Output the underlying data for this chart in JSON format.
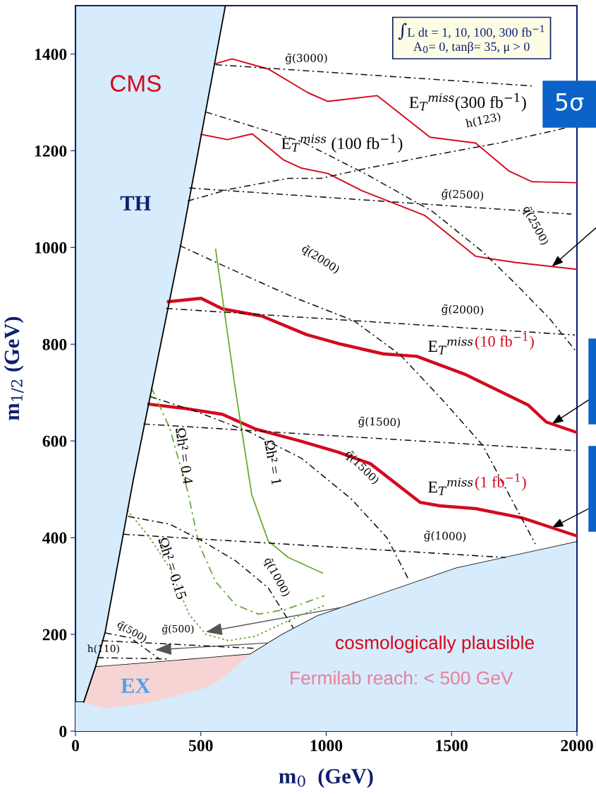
{
  "chart_data": {
    "type": "line",
    "xlabel": "m$_{0}$  (GeV)",
    "ylabel": "m$_{1/2}$ (GeV)",
    "xlim": [
      0,
      2000
    ],
    "ylim": [
      0,
      1500
    ],
    "xticks": [
      0,
      500,
      1000,
      1500,
      2000
    ],
    "yticks": [
      0,
      200,
      400,
      600,
      800,
      1000,
      1200,
      1400
    ],
    "grid": false,
    "marker": "none",
    "series": [
      {
        "color": "#d40a1e",
        "line_style": "solid",
        "x": [
          559,
          625,
          769,
          927,
          1007,
          1203,
          1414,
          1596,
          1729,
          1820,
          1997
        ],
        "values": [
          1380,
          1390,
          1369,
          1320,
          1302,
          1314,
          1228,
          1216,
          1158,
          1136,
          1134
        ]
      },
      {
        "color": "#d40a1e",
        "line_style": "solid",
        "x": [
          501,
          606,
          705,
          830,
          902,
          1007,
          1140,
          1394,
          1596,
          1649,
          1754,
          1997
        ],
        "values": [
          1234,
          1223,
          1235,
          1181,
          1164,
          1153,
          1118,
          1066,
          982,
          977,
          969,
          955
        ]
      },
      {
        "color": "#d40a1e",
        "line_style": "solid",
        "x": [
          371,
          501,
          586,
          744,
          921,
          1059,
          1228,
          1361,
          1557,
          1806,
          1878,
          1997
        ],
        "values": [
          888,
          895,
          873,
          858,
          820,
          800,
          780,
          775,
          737,
          674,
          639,
          618
        ]
      },
      {
        "color": "#d40a1e",
        "line_style": "solid",
        "x": [
          293,
          440,
          586,
          716,
          902,
          1046,
          1176,
          1375,
          1452,
          1596,
          1781,
          1997
        ],
        "values": [
          676,
          667,
          655,
          625,
          599,
          577,
          553,
          473,
          466,
          460,
          441,
          404
        ]
      },
      {
        "color": "#6aaa34",
        "line_style": "solid",
        "x": [
          559,
          639,
          703,
          769,
          849,
          985
        ],
        "values": [
          996,
          702,
          489,
          393,
          359,
          327
        ]
      },
      {
        "color": "#6aaa34",
        "line_style": "dashed",
        "x": [
          302,
          376,
          448,
          492,
          559,
          639,
          730,
          835,
          993
        ],
        "values": [
          711,
          626,
          495,
          387,
          309,
          261,
          242,
          251,
          280
        ]
      },
      {
        "color": "#6aaa34",
        "line_style": "dotted",
        "x": [
          207,
          296,
          376,
          454,
          520,
          611,
          716,
          902,
          993
        ],
        "values": [
          457,
          400,
          337,
          241,
          200,
          187,
          196,
          241,
          260
        ]
      },
      {
        "color": "#111111",
        "line_style": "dashed",
        "x": [
          559,
          1820
        ],
        "values": [
          1378,
          1334
        ]
      },
      {
        "color": "#111111",
        "line_style": "dashed",
        "x": [
          454,
          1978
        ],
        "values": [
          1123,
          1069
        ]
      },
      {
        "color": "#111111",
        "line_style": "dashed",
        "x": [
          362,
          1992
        ],
        "values": [
          874,
          819
        ]
      },
      {
        "color": "#111111",
        "line_style": "dashed",
        "x": [
          271,
          1992
        ],
        "values": [
          635,
          580
        ]
      },
      {
        "color": "#111111",
        "line_style": "dashed",
        "x": [
          191,
          1715
        ],
        "values": [
          407,
          359
        ]
      },
      {
        "color": "#111111",
        "line_style": "dashed",
        "x": [
          105,
          722
        ],
        "values": [
          187,
          171
        ]
      },
      {
        "color": "#111111",
        "line_style": "dashed",
        "x": [
          86,
          376
        ],
        "values": [
          152,
          149
        ]
      },
      {
        "color": "#111111",
        "line_style": "dashed",
        "x": [
          119,
          219,
          335
        ],
        "values": [
          203,
          193,
          149
        ]
      },
      {
        "color": "#111111",
        "line_style": "dashed",
        "x": [
          448,
          611,
          849,
          979,
          1165,
          1427,
          1690,
          1953
        ],
        "values": [
          1096,
          1120,
          1143,
          1143,
          1164,
          1191,
          1216,
          1247
        ]
      },
      {
        "color": "#111111",
        "line_style": "dashed",
        "x": [
          520,
          902,
          1165,
          1425,
          1624,
          1751,
          1889,
          1997
        ],
        "values": [
          1280,
          1219,
          1150,
          1074,
          991,
          927,
          854,
          785
        ]
      },
      {
        "color": "#111111",
        "line_style": "dashed",
        "x": [
          415,
          617,
          866,
          1112,
          1295,
          1474,
          1624,
          1729,
          1834
        ],
        "values": [
          1004,
          956,
          898,
          848,
          778,
          679,
          591,
          489,
          387
        ]
      },
      {
        "color": "#111111",
        "line_style": "dashed",
        "x": [
          296,
          481,
          692,
          902,
          1100,
          1242,
          1328
        ],
        "values": [
          692,
          661,
          619,
          564,
          480,
          400,
          314
        ]
      },
      {
        "color": "#111111",
        "line_style": "dashed",
        "x": [
          210,
          376,
          506,
          639,
          769,
          869
        ],
        "values": [
          444,
          428,
          393,
          352,
          296,
          213
        ]
      },
      {
        "color": "#000000",
        "line_style": "solid",
        "x": [
          33,
          80,
          119,
          230,
          418,
          598
        ],
        "values": [
          60,
          133,
          206,
          518,
          1000,
          1500
        ]
      },
      {
        "type": "area",
        "color": "#f7d4d4",
        "x": [
          33,
          80,
          113,
          282,
          520,
          584,
          697
        ],
        "values": [
          60,
          133,
          134,
          141,
          151,
          154,
          159
        ]
      },
      {
        "type": "area",
        "color": "#d6ebfb",
        "x": [
          0,
          33,
          113,
          282,
          520,
          584,
          697,
          822,
          965,
          1519,
          1997
        ],
        "values": [
          60,
          60,
          47,
          57,
          89,
          108,
          159,
          199,
          238,
          337,
          391
        ]
      }
    ],
    "annotations": [
      "g̃(3000)",
      "E$_{T}$$^{miss}$(300 fb$^{−1}$)",
      "E$_{T}$$^{miss}$ (100 fb$^{−1}$)",
      "h(123)",
      "g̃(2500)",
      "q̃(2000)",
      "q̃(2500)",
      "g̃(2000)",
      "E$_{T}$$^{miss}$",
      "(10 fb$^{−1}$)",
      "g̃(1500)",
      "q̃(1500)",
      "E$_{T}$$^{miss}$",
      "(1 fb$^{−1}$)",
      "g̃(1000)",
      "q̃(1000)",
      "Ωh² = 0.4",
      "Ωh² = 1",
      "Ωh² = 0.15",
      "q̃(500)",
      "g̃(500)",
      "h(110)",
      "cosmologically plausible",
      "Fermilab reach: < 500 GeV",
      "∫L dt = 1, 10, 100, 300 fb$^{−1}$\nA$_{0}$= 0, tanβ= 35, μ > 0",
      "CMS",
      "TH",
      "EX",
      "5σ"
    ]
  }
}
